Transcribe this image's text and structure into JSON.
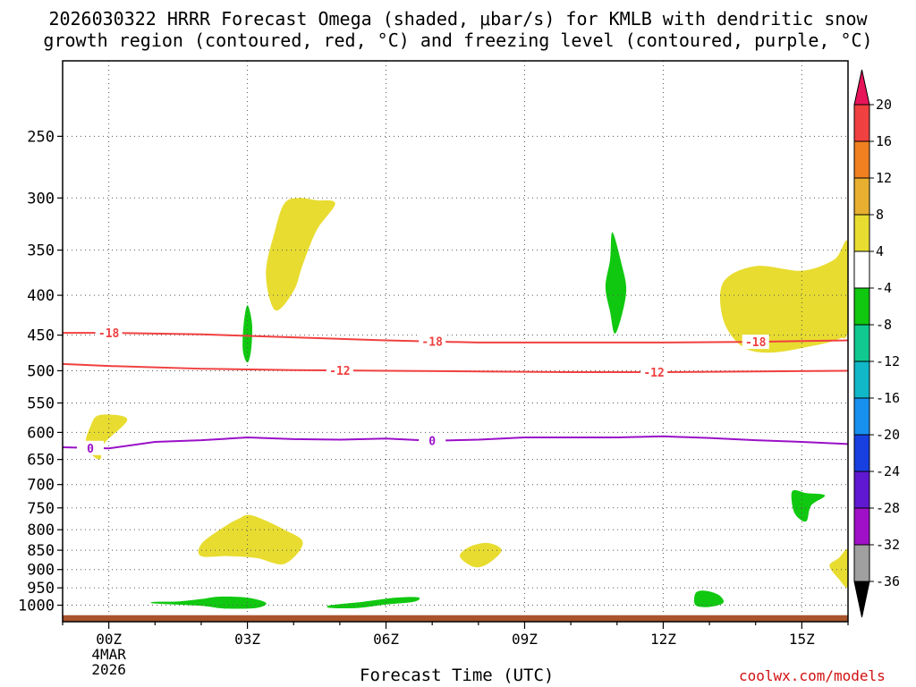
{
  "title_line1": "2026030322 HRRR Forecast Omega (shaded, μbar/s) for KMLB with dendritic snow",
  "title_line2": "growth region (contoured, red, °C) and freezing level (contoured, purple, °C)",
  "credit": "coolwx.com/models",
  "chart_data": {
    "type": "contour",
    "xlabel": "Forecast Time (UTC)",
    "ylabel": "",
    "x_range_hours": [
      -1.0,
      16.0
    ],
    "x_ticks": [
      {
        "hour": 0,
        "label": "00Z",
        "sub": [
          "4MAR",
          "2026"
        ]
      },
      {
        "hour": 3,
        "label": "03Z"
      },
      {
        "hour": 6,
        "label": "06Z"
      },
      {
        "hour": 9,
        "label": "09Z"
      },
      {
        "hour": 12,
        "label": "12Z"
      },
      {
        "hour": 15,
        "label": "15Z"
      }
    ],
    "y_scale": "log-pressure (hPa, inverted)",
    "y_range_hPa": [
      1050,
      200
    ],
    "y_ticks": [
      250,
      300,
      350,
      400,
      450,
      500,
      550,
      600,
      650,
      700,
      750,
      800,
      850,
      900,
      950,
      1000
    ],
    "grid": true,
    "colorbar": {
      "units": "μbar/s",
      "labels": [
        20,
        16,
        12,
        8,
        4,
        -4,
        -8,
        -12,
        -16,
        -20,
        -24,
        -28,
        -32,
        -36
      ],
      "colors": [
        "#e8145a",
        "#f04040",
        "#f08020",
        "#e8b030",
        "#e8dc30",
        "#ffffff",
        "#10c810",
        "#10c890",
        "#10b8c8",
        "#1890f0",
        "#1840e0",
        "#6018d0",
        "#a010c8",
        "#a0a0a0",
        "#000000"
      ]
    },
    "contours": [
      {
        "name": "-18 °C",
        "color": "#f04040",
        "x": [
          -1,
          0,
          2,
          4,
          6,
          8,
          10,
          12,
          14,
          16
        ],
        "y": [
          447,
          447,
          449,
          453,
          457,
          460,
          460,
          460,
          459,
          457
        ],
        "labels_at": [
          0,
          7,
          14
        ]
      },
      {
        "name": "-12 °C",
        "color": "#f04040",
        "x": [
          -1,
          0,
          2,
          4,
          6,
          8,
          10,
          12,
          14,
          16
        ],
        "y": [
          490,
          493,
          497,
          499,
          500,
          501,
          502,
          502,
          501,
          500
        ],
        "labels_at": [
          5,
          11.8
        ]
      },
      {
        "name": "0 °C",
        "color": "#9a10c8",
        "x": [
          -1,
          0,
          1,
          2,
          3,
          4,
          5,
          6,
          7,
          8,
          9,
          10,
          11,
          12,
          13,
          14,
          15,
          16
        ],
        "y": [
          627,
          629,
          617,
          614,
          609,
          612,
          613,
          611,
          615,
          613,
          609,
          609,
          609,
          607,
          610,
          614,
          617,
          621
        ],
        "labels_at": [
          -0.4,
          7
        ]
      }
    ],
    "shaded_regions": [
      {
        "value_class": "4 to 8",
        "color": "#e8dc30",
        "points": [
          [
            -0.2,
            570
          ],
          [
            0.4,
            577
          ],
          [
            -0.1,
            620
          ],
          [
            -0.2,
            650
          ],
          [
            -0.5,
            625
          ],
          [
            -0.4,
            590
          ]
        ]
      },
      {
        "value_class": "4 to 8",
        "color": "#e8dc30",
        "points": [
          [
            4.1,
            300
          ],
          [
            4.5,
            302
          ],
          [
            4.9,
            305
          ],
          [
            4.5,
            330
          ],
          [
            4.2,
            365
          ],
          [
            4.0,
            395
          ],
          [
            3.6,
            418
          ],
          [
            3.4,
            375
          ],
          [
            3.6,
            330
          ],
          [
            3.8,
            305
          ]
        ]
      },
      {
        "value_class": "4 to 8",
        "color": "#e8dc30",
        "points": [
          [
            2.0,
            835
          ],
          [
            2.4,
            800
          ],
          [
            2.8,
            775
          ],
          [
            3.1,
            767
          ],
          [
            3.8,
            800
          ],
          [
            4.2,
            832
          ],
          [
            3.8,
            885
          ],
          [
            3.2,
            870
          ],
          [
            2.6,
            865
          ],
          [
            2.0,
            865
          ]
        ]
      },
      {
        "value_class": "4 to 8",
        "color": "#e8dc30",
        "points": [
          [
            7.8,
            842
          ],
          [
            8.2,
            832
          ],
          [
            8.5,
            850
          ],
          [
            8.2,
            885
          ],
          [
            7.9,
            893
          ],
          [
            7.6,
            866
          ]
        ]
      },
      {
        "value_class": "4 to 8",
        "color": "#e8dc30",
        "points": [
          [
            13.3,
            385
          ],
          [
            14.0,
            367
          ],
          [
            15.0,
            372
          ],
          [
            15.7,
            360
          ],
          [
            16.0,
            343
          ],
          [
            16.0,
            440
          ],
          [
            15.8,
            455
          ],
          [
            15.2,
            465
          ],
          [
            14.3,
            474
          ],
          [
            13.7,
            465
          ],
          [
            13.3,
            430
          ]
        ]
      },
      {
        "value_class": "4 to 8",
        "color": "#e8dc30",
        "points": [
          [
            16.0,
            850
          ],
          [
            15.8,
            870
          ],
          [
            15.6,
            890
          ],
          [
            15.8,
            925
          ],
          [
            16.0,
            945
          ]
        ]
      },
      {
        "value_class": "-4 to -8",
        "color": "#10c810",
        "points": [
          [
            3.0,
            412
          ],
          [
            3.1,
            435
          ],
          [
            3.08,
            470
          ],
          [
            3.0,
            488
          ],
          [
            2.9,
            470
          ],
          [
            2.92,
            435
          ]
        ]
      },
      {
        "value_class": "-4 to -8",
        "color": "#10c810",
        "points": [
          [
            10.9,
            332
          ],
          [
            11.1,
            365
          ],
          [
            11.2,
            393
          ],
          [
            11.1,
            425
          ],
          [
            10.95,
            448
          ],
          [
            10.85,
            420
          ],
          [
            10.75,
            390
          ],
          [
            10.85,
            360
          ]
        ]
      },
      {
        "value_class": "-4 to -8",
        "color": "#10c810",
        "points": [
          [
            14.8,
            713
          ],
          [
            15.1,
            718
          ],
          [
            15.5,
            723
          ],
          [
            15.2,
            745
          ],
          [
            15.1,
            780
          ],
          [
            14.9,
            770
          ],
          [
            14.8,
            748
          ]
        ]
      },
      {
        "value_class": "-4 to -8",
        "color": "#10c810",
        "points": [
          [
            12.7,
            965
          ],
          [
            12.9,
            958
          ],
          [
            13.2,
            970
          ],
          [
            13.3,
            993
          ],
          [
            13.0,
            1005
          ],
          [
            12.7,
            1000
          ]
        ]
      },
      {
        "value_class": "-4 to -8",
        "color": "#10c810",
        "points": [
          [
            1.0,
            990
          ],
          [
            1.5,
            989
          ],
          [
            2.0,
            982
          ],
          [
            2.4,
            975
          ],
          [
            3.0,
            978
          ],
          [
            3.4,
            993
          ],
          [
            3.2,
            1008
          ],
          [
            2.5,
            1010
          ],
          [
            2.0,
            1002
          ],
          [
            1.0,
            995
          ]
        ]
      },
      {
        "value_class": "-4 to -8",
        "color": "#10c810",
        "points": [
          [
            4.8,
            1000
          ],
          [
            5.5,
            990
          ],
          [
            6.2,
            978
          ],
          [
            6.7,
            977
          ],
          [
            6.6,
            990
          ],
          [
            6.0,
            998
          ],
          [
            5.4,
            1008
          ],
          [
            4.8,
            1008
          ]
        ]
      }
    ],
    "surface_color": "#a8542c",
    "surface_top_hPa": 1030
  }
}
